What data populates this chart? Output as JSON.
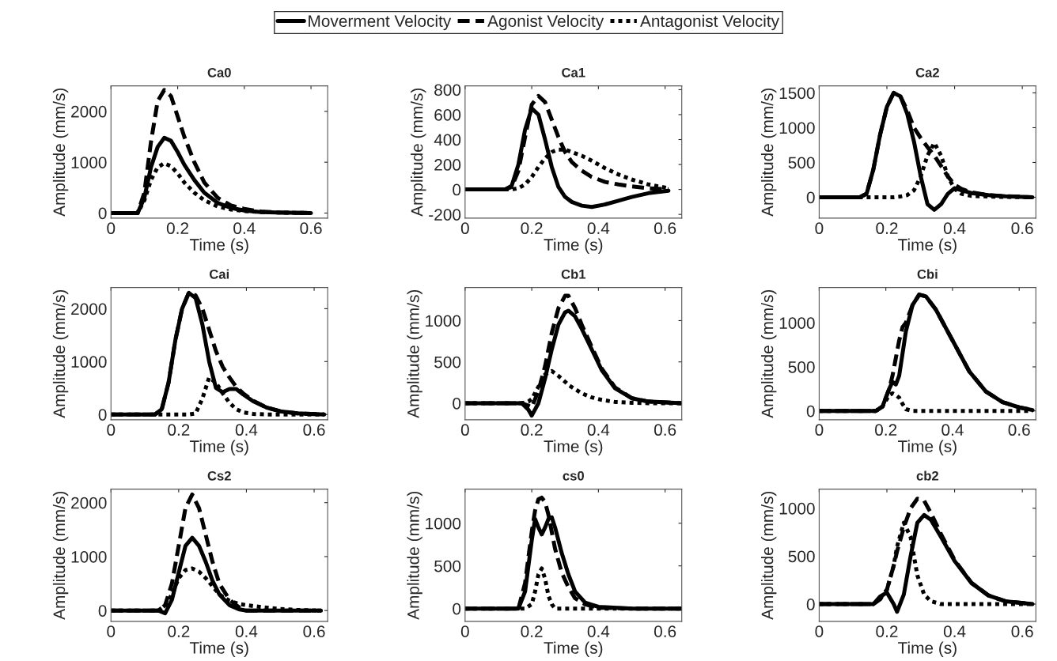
{
  "chart_data": [
    {
      "type": "line",
      "title": "Ca0",
      "xlabel": "Time (s)",
      "ylabel": "Amplitude (mm/s)",
      "legend": "top",
      "xlim": [
        0,
        0.65
      ],
      "xticks": [
        0,
        0.2,
        0.4,
        0.6
      ],
      "ylim": [
        -100,
        2500
      ],
      "yticks": [
        0,
        1000,
        2000
      ],
      "x": [
        0,
        0.08,
        0.1,
        0.12,
        0.14,
        0.16,
        0.18,
        0.2,
        0.22,
        0.25,
        0.28,
        0.32,
        0.36,
        0.4,
        0.45,
        0.5,
        0.6
      ],
      "series": [
        {
          "name": "Moverment Velocity",
          "color": "#000000",
          "line_style": "solid",
          "values": [
            0,
            0,
            300,
            900,
            1300,
            1480,
            1420,
            1200,
            950,
            650,
            400,
            200,
            100,
            50,
            20,
            10,
            0
          ]
        },
        {
          "name": "Agonist Velocity",
          "color": "#000000",
          "line_style": "dashed",
          "values": [
            0,
            0,
            400,
            1400,
            2200,
            2420,
            2300,
            1900,
            1500,
            1000,
            600,
            300,
            150,
            80,
            30,
            10,
            0
          ]
        },
        {
          "name": "Antagonist Velocity",
          "color": "#000000",
          "line_style": "dotted",
          "values": [
            0,
            0,
            250,
            650,
            900,
            980,
            920,
            780,
            600,
            400,
            250,
            130,
            70,
            40,
            20,
            10,
            0
          ]
        }
      ]
    },
    {
      "type": "line",
      "title": "Ca1",
      "xlabel": "Time (s)",
      "ylabel": "Amplitude (mm/s)",
      "xlim": [
        0,
        0.65
      ],
      "xticks": [
        0,
        0.2,
        0.4,
        0.6
      ],
      "ylim": [
        -230,
        830
      ],
      "yticks": [
        -200,
        0,
        200,
        400,
        600,
        800
      ],
      "x": [
        0,
        0.12,
        0.14,
        0.16,
        0.18,
        0.2,
        0.22,
        0.24,
        0.26,
        0.28,
        0.3,
        0.32,
        0.35,
        0.38,
        0.42,
        0.46,
        0.5,
        0.55,
        0.61
      ],
      "series": [
        {
          "color": "#000000",
          "line_style": "solid",
          "values": [
            0,
            0,
            30,
            200,
            480,
            650,
            600,
            400,
            180,
            20,
            -60,
            -100,
            -130,
            -140,
            -120,
            -90,
            -60,
            -30,
            -10
          ]
        },
        {
          "color": "#000000",
          "line_style": "dashed",
          "values": [
            0,
            0,
            20,
            150,
            420,
            680,
            750,
            700,
            560,
            420,
            300,
            220,
            150,
            100,
            60,
            40,
            25,
            10,
            0
          ]
        },
        {
          "color": "#000000",
          "line_style": "dotted",
          "values": [
            0,
            0,
            0,
            10,
            40,
            100,
            180,
            250,
            300,
            320,
            320,
            300,
            270,
            230,
            170,
            120,
            80,
            40,
            10
          ]
        }
      ]
    },
    {
      "type": "line",
      "title": "Ca2",
      "xlabel": "Time (s)",
      "ylabel": "Amplitude (mm/s)",
      "xlim": [
        0,
        0.64
      ],
      "xticks": [
        0,
        0.2,
        0.4,
        0.6
      ],
      "ylim": [
        -300,
        1600
      ],
      "yticks": [
        0,
        500,
        1000,
        1500
      ],
      "x": [
        0,
        0.12,
        0.14,
        0.16,
        0.18,
        0.2,
        0.22,
        0.24,
        0.26,
        0.28,
        0.3,
        0.32,
        0.34,
        0.36,
        0.38,
        0.4,
        0.42,
        0.45,
        0.5,
        0.55,
        0.63
      ],
      "series": [
        {
          "color": "#000000",
          "line_style": "solid",
          "values": [
            0,
            0,
            50,
            400,
            900,
            1300,
            1500,
            1450,
            1200,
            800,
            300,
            -100,
            -180,
            -100,
            50,
            130,
            100,
            60,
            30,
            15,
            0
          ]
        },
        {
          "color": "#000000",
          "line_style": "dashed",
          "values": [
            0,
            0,
            50,
            400,
            900,
            1300,
            1500,
            1450,
            1250,
            1000,
            850,
            720,
            600,
            450,
            300,
            180,
            120,
            70,
            30,
            15,
            0
          ]
        },
        {
          "color": "#000000",
          "line_style": "dotted",
          "values": [
            0,
            0,
            0,
            0,
            0,
            0,
            0,
            10,
            30,
            100,
            300,
            600,
            780,
            600,
            300,
            120,
            50,
            20,
            10,
            5,
            0
          ]
        }
      ]
    },
    {
      "type": "line",
      "title": "Cai",
      "xlabel": "Time (s)",
      "ylabel": "Amplitude (mm/s)",
      "xlim": [
        0,
        0.64
      ],
      "xticks": [
        0,
        0.2,
        0.4,
        0.6
      ],
      "ylim": [
        -100,
        2400
      ],
      "yticks": [
        0,
        1000,
        2000
      ],
      "x": [
        0,
        0.13,
        0.15,
        0.17,
        0.19,
        0.21,
        0.23,
        0.25,
        0.27,
        0.29,
        0.31,
        0.33,
        0.35,
        0.37,
        0.39,
        0.42,
        0.46,
        0.5,
        0.55,
        0.63
      ],
      "series": [
        {
          "color": "#000000",
          "line_style": "solid",
          "values": [
            0,
            0,
            100,
            600,
            1400,
            2000,
            2300,
            2200,
            1700,
            1000,
            500,
            420,
            480,
            480,
            380,
            250,
            130,
            60,
            20,
            0
          ]
        },
        {
          "color": "#000000",
          "line_style": "dashed",
          "values": [
            0,
            0,
            100,
            600,
            1400,
            2000,
            2300,
            2250,
            2000,
            1600,
            1200,
            900,
            700,
            520,
            400,
            260,
            130,
            60,
            20,
            0
          ]
        },
        {
          "color": "#000000",
          "line_style": "dotted",
          "values": [
            0,
            0,
            0,
            0,
            0,
            0,
            0,
            20,
            300,
            700,
            600,
            400,
            220,
            100,
            40,
            10,
            0,
            0,
            0,
            0
          ]
        }
      ]
    },
    {
      "type": "line",
      "title": "Cb1",
      "xlabel": "Time (s)",
      "ylabel": "Amplitude (mm/s)",
      "xlim": [
        0,
        0.65
      ],
      "xticks": [
        0,
        0.2,
        0.4,
        0.6
      ],
      "ylim": [
        -200,
        1400
      ],
      "yticks": [
        0,
        500,
        1000
      ],
      "x": [
        0,
        0.17,
        0.19,
        0.2,
        0.22,
        0.24,
        0.26,
        0.28,
        0.3,
        0.31,
        0.33,
        0.35,
        0.38,
        0.41,
        0.45,
        0.5,
        0.55,
        0.65
      ],
      "series": [
        {
          "color": "#000000",
          "line_style": "solid",
          "values": [
            0,
            0,
            -80,
            -150,
            0,
            300,
            650,
            950,
            1100,
            1120,
            1050,
            900,
            650,
            400,
            180,
            60,
            20,
            0
          ]
        },
        {
          "color": "#000000",
          "line_style": "dashed",
          "values": [
            0,
            0,
            -30,
            -50,
            150,
            450,
            850,
            1150,
            1300,
            1300,
            1150,
            950,
            680,
            420,
            190,
            60,
            20,
            0
          ]
        },
        {
          "color": "#000000",
          "line_style": "dotted",
          "values": [
            0,
            0,
            20,
            50,
            200,
            350,
            390,
            330,
            260,
            220,
            170,
            120,
            70,
            40,
            15,
            5,
            0,
            0
          ]
        }
      ]
    },
    {
      "type": "line",
      "title": "Cbi",
      "xlabel": "Time (s)",
      "ylabel": "Amplitude (mm/s)",
      "xlim": [
        0,
        0.65
      ],
      "xticks": [
        0,
        0.2,
        0.4,
        0.6
      ],
      "ylim": [
        -100,
        1400
      ],
      "yticks": [
        0,
        500,
        1000
      ],
      "x": [
        0,
        0.17,
        0.19,
        0.21,
        0.22,
        0.23,
        0.24,
        0.25,
        0.26,
        0.28,
        0.3,
        0.32,
        0.35,
        0.4,
        0.45,
        0.5,
        0.55,
        0.6,
        0.64
      ],
      "series": [
        {
          "color": "#000000",
          "line_style": "solid",
          "values": [
            0,
            0,
            50,
            250,
            330,
            300,
            400,
            650,
            900,
            1200,
            1320,
            1300,
            1150,
            800,
            450,
            220,
            100,
            40,
            10
          ]
        },
        {
          "color": "#000000",
          "line_style": "dashed",
          "values": [
            0,
            0,
            50,
            250,
            400,
            600,
            800,
            950,
            1000,
            1200,
            1320,
            1300,
            1150,
            800,
            450,
            220,
            100,
            40,
            10
          ]
        },
        {
          "color": "#000000",
          "line_style": "dotted",
          "values": [
            0,
            0,
            50,
            180,
            200,
            180,
            150,
            80,
            20,
            0,
            0,
            0,
            0,
            0,
            0,
            0,
            0,
            0,
            0
          ]
        }
      ]
    },
    {
      "type": "line",
      "title": "Cs2",
      "xlabel": "Time (s)",
      "ylabel": "Amplitude (mm/s)",
      "xlim": [
        0,
        0.64
      ],
      "xticks": [
        0,
        0.2,
        0.4,
        0.6
      ],
      "ylim": [
        -200,
        2250
      ],
      "yticks": [
        0,
        1000,
        2000
      ],
      "x": [
        0,
        0.14,
        0.16,
        0.18,
        0.2,
        0.22,
        0.24,
        0.26,
        0.28,
        0.3,
        0.32,
        0.35,
        0.38,
        0.4,
        0.45,
        0.5,
        0.55,
        0.62
      ],
      "series": [
        {
          "color": "#000000",
          "line_style": "solid",
          "values": [
            0,
            0,
            -50,
            200,
            700,
            1200,
            1350,
            1200,
            900,
            550,
            300,
            100,
            20,
            0,
            0,
            0,
            0,
            0
          ]
        },
        {
          "color": "#000000",
          "line_style": "dashed",
          "values": [
            0,
            0,
            100,
            500,
            1200,
            1900,
            2150,
            1900,
            1400,
            900,
            500,
            200,
            50,
            0,
            0,
            0,
            0,
            0
          ]
        },
        {
          "color": "#000000",
          "line_style": "dotted",
          "values": [
            0,
            0,
            100,
            300,
            600,
            750,
            780,
            720,
            600,
            450,
            300,
            180,
            120,
            100,
            60,
            30,
            10,
            0
          ]
        }
      ]
    },
    {
      "type": "line",
      "title": "cs0",
      "xlabel": "Time (s)",
      "ylabel": "Amplitude (mm/s)",
      "xlim": [
        0,
        0.65
      ],
      "xticks": [
        0,
        0.2,
        0.4,
        0.6
      ],
      "ylim": [
        -150,
        1400
      ],
      "yticks": [
        0,
        500,
        1000
      ],
      "x": [
        0,
        0.16,
        0.18,
        0.2,
        0.21,
        0.22,
        0.23,
        0.24,
        0.25,
        0.26,
        0.27,
        0.29,
        0.31,
        0.33,
        0.36,
        0.4,
        0.5,
        0.65
      ],
      "series": [
        {
          "color": "#000000",
          "line_style": "solid",
          "values": [
            0,
            0,
            200,
            800,
            1050,
            950,
            870,
            950,
            1050,
            1070,
            950,
            650,
            400,
            200,
            70,
            20,
            0,
            0
          ]
        },
        {
          "color": "#000000",
          "line_style": "dashed",
          "values": [
            0,
            0,
            300,
            900,
            1150,
            1280,
            1300,
            1250,
            1100,
            900,
            700,
            420,
            250,
            120,
            50,
            10,
            0,
            0
          ]
        },
        {
          "color": "#000000",
          "line_style": "dotted",
          "values": [
            0,
            0,
            0,
            50,
            200,
            400,
            470,
            350,
            150,
            50,
            0,
            0,
            0,
            0,
            0,
            0,
            0,
            0
          ]
        }
      ]
    },
    {
      "type": "line",
      "title": "cb2",
      "xlabel": "Time (s)",
      "ylabel": "Amplitude (mm/s)",
      "xlim": [
        0,
        0.64
      ],
      "xticks": [
        0,
        0.2,
        0.4,
        0.6
      ],
      "ylim": [
        -180,
        1200
      ],
      "yticks": [
        0,
        500,
        1000
      ],
      "x": [
        0,
        0.16,
        0.18,
        0.2,
        0.22,
        0.23,
        0.25,
        0.27,
        0.29,
        0.31,
        0.33,
        0.36,
        0.4,
        0.45,
        0.5,
        0.55,
        0.63
      ],
      "series": [
        {
          "color": "#000000",
          "line_style": "solid",
          "values": [
            0,
            0,
            80,
            120,
            0,
            -80,
            100,
            500,
            850,
            930,
            880,
            700,
            450,
            220,
            90,
            30,
            0
          ]
        },
        {
          "color": "#000000",
          "line_style": "dashed",
          "values": [
            0,
            0,
            50,
            150,
            400,
            550,
            800,
            1000,
            1100,
            1080,
            950,
            730,
            460,
            220,
            90,
            30,
            0
          ]
        },
        {
          "color": "#000000",
          "line_style": "dotted",
          "values": [
            0,
            0,
            60,
            150,
            400,
            600,
            850,
            700,
            300,
            100,
            30,
            0,
            0,
            0,
            0,
            0,
            0
          ]
        }
      ]
    }
  ]
}
